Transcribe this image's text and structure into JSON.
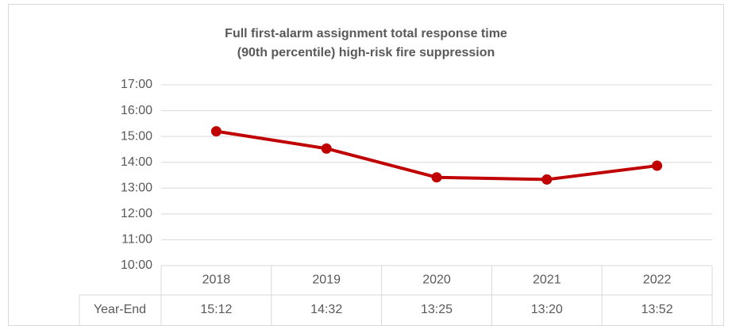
{
  "chart_data": {
    "type": "line",
    "title": [
      "Full first-alarm assignment total response time",
      "(90th percentile) high-risk fire suppression"
    ],
    "categories": [
      "2018",
      "2019",
      "2020",
      "2021",
      "2022"
    ],
    "series": [
      {
        "name": "Year-End",
        "color": "#c00000",
        "values": [
          15.2,
          14.533333,
          13.416667,
          13.333333,
          13.866667
        ],
        "value_labels": [
          "15:12",
          "14:32",
          "13:25",
          "13:20",
          "13:52"
        ]
      }
    ],
    "ylim": [
      10,
      17
    ],
    "yticks": [
      {
        "value": 10,
        "label": "10:00"
      },
      {
        "value": 11,
        "label": "11:00"
      },
      {
        "value": 12,
        "label": "12:00"
      },
      {
        "value": 13,
        "label": "13:00"
      },
      {
        "value": 14,
        "label": "14:00"
      },
      {
        "value": 15,
        "label": "15:00"
      },
      {
        "value": 16,
        "label": "16:00"
      },
      {
        "value": 17,
        "label": "17:00"
      }
    ],
    "grid": true,
    "data_table": true
  }
}
